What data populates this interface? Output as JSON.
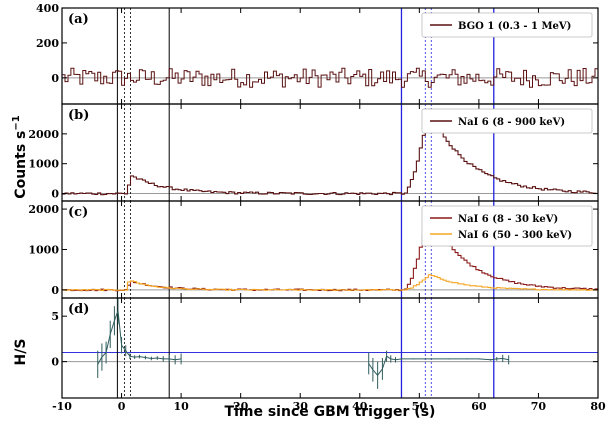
{
  "chart_data": {
    "type": "line",
    "xlabel": "Time since GBM trigger (s)",
    "ylabel_counts": "Counts s",
    "ylabel_counts_sup": "−1",
    "xlim": [
      -10,
      80
    ],
    "x_ticks": [
      -10,
      0,
      10,
      20,
      30,
      40,
      50,
      60,
      70,
      80
    ],
    "vlines": {
      "black_solid": [
        -0.7,
        8.0
      ],
      "black_dashed": [
        0.5,
        1.5
      ],
      "blue_solid": [
        47.0,
        62.5
      ],
      "blue_dashed": [
        51.0,
        52.0
      ]
    },
    "panels": [
      {
        "label": "(a)",
        "ylim": [
          -150,
          400
        ],
        "y_ticks": [
          0,
          200,
          400
        ],
        "hline": 0,
        "series": [
          {
            "name": "BGO 1 (0.3 - 1 MeV)",
            "color": "#5a1010",
            "kind": "noise",
            "base": 0,
            "amplitude": 55
          }
        ]
      },
      {
        "label": "(b)",
        "ylim": [
          -250,
          3000
        ],
        "y_ticks": [
          0,
          1000,
          2000
        ],
        "hline": 0,
        "series": [
          {
            "name": "NaI 6 (8 - 900 keV)",
            "color": "#5a1010",
            "kind": "pulses",
            "base": 0,
            "noise": 40,
            "pulses": [
              {
                "t0": 0.5,
                "peak": 620,
                "rise": 0.8,
                "decay": 5.5
              },
              {
                "t0": 47.2,
                "peak": 2850,
                "rise": 4.2,
                "decay": 6.5
              }
            ]
          }
        ]
      },
      {
        "label": "(c)",
        "ylim": [
          -200,
          2200
        ],
        "y_ticks": [
          0,
          1000,
          2000
        ],
        "hline": 0,
        "series": [
          {
            "name": "NaI 6 (8 - 30 keV)",
            "color": "#8b1a1a",
            "kind": "pulses",
            "base": 0,
            "noise": 20,
            "pulses": [
              {
                "t0": 0.5,
                "peak": 220,
                "rise": 0.8,
                "decay": 5.0
              },
              {
                "t0": 47.2,
                "peak": 2000,
                "rise": 4.2,
                "decay": 6.0
              }
            ]
          },
          {
            "name": "NaI 6 (50 - 300 keV)",
            "color": "#f5a623",
            "kind": "pulses",
            "base": 0,
            "noise": 12,
            "pulses": [
              {
                "t0": 0.5,
                "peak": 250,
                "rise": 0.6,
                "decay": 4.0
              },
              {
                "t0": 47.2,
                "peak": 380,
                "rise": 4.4,
                "decay": 5.5
              }
            ]
          }
        ]
      },
      {
        "label": "(d)",
        "ylabel": "H/S",
        "ylim": [
          -4,
          7
        ],
        "y_ticks": [
          0,
          5
        ],
        "hline": 0,
        "hline_blue": 1,
        "series": [
          {
            "name": "H/S",
            "color": "#2f5d5d",
            "kind": "ratio",
            "segment1": {
              "t": [
                -4,
                -3.3,
                -2.6,
                -1.9,
                -1.2,
                -0.6,
                0,
                0.7,
                1.4,
                2.2,
                3,
                4,
                5,
                6,
                7,
                8,
                9,
                10
              ],
              "v": [
                -0.3,
                0.5,
                1.0,
                3.0,
                4.5,
                5.6,
                1.8,
                1.2,
                0.6,
                0.5,
                0.55,
                0.45,
                0.35,
                0.4,
                0.3,
                0.3,
                0.2,
                0.3
              ],
              "e": [
                1.5,
                1.5,
                1.2,
                1.5,
                1.6,
                1.5,
                0.9,
                0.6,
                0.3,
                0.2,
                0.2,
                0.2,
                0.2,
                0.2,
                0.3,
                0.4,
                0.5,
                0.6
              ]
            },
            "segment2": {
              "t": [
                41.5,
                42.2,
                43,
                43.8,
                44.5,
                45.2,
                46,
                47,
                49,
                52,
                55,
                58,
                60,
                62,
                63,
                64,
                65
              ],
              "v": [
                -0.2,
                -0.9,
                -1.5,
                -0.8,
                0.6,
                0.3,
                0.2,
                0.3,
                0.3,
                0.3,
                0.3,
                0.3,
                0.3,
                0.2,
                0.3,
                0.35,
                0.2
              ],
              "e": [
                1.2,
                1.3,
                1.5,
                1.2,
                0.6,
                0.4,
                0.3,
                0.1,
                0.05,
                0.05,
                0.05,
                0.05,
                0.05,
                0.1,
                0.2,
                0.4,
                0.5
              ]
            }
          }
        ]
      }
    ]
  }
}
